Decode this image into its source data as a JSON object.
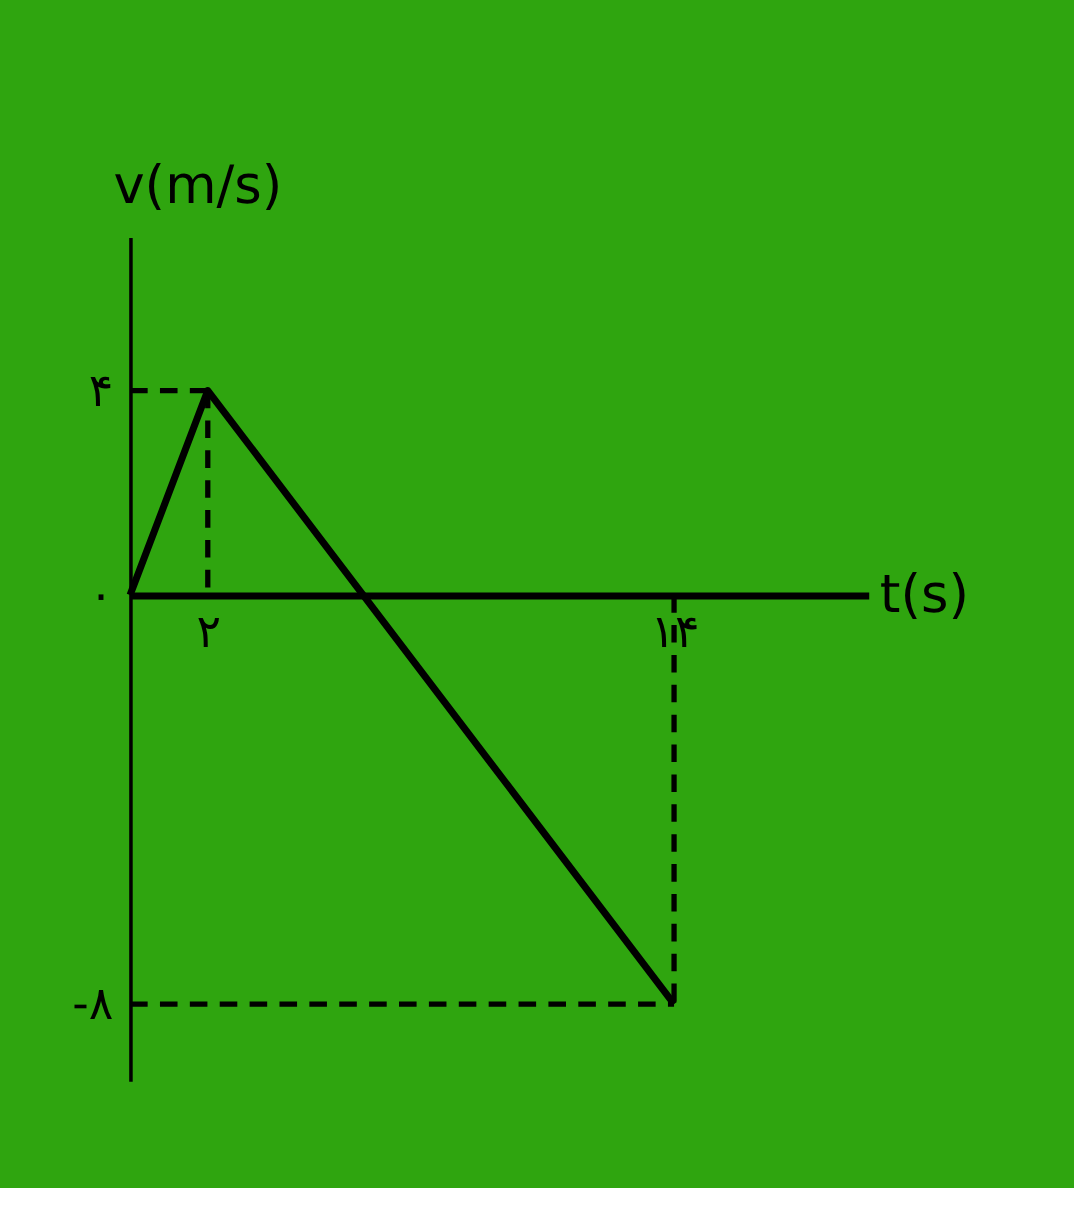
{
  "chart_data": {
    "type": "line",
    "xlabel": "t(s)",
    "ylabel": "v(m/s)",
    "xlim": [
      0,
      19
    ],
    "ylim": [
      -9.5,
      7
    ],
    "xticks": [
      {
        "value": 2,
        "label": "۲"
      },
      {
        "value": 14,
        "label": "۱۴"
      }
    ],
    "yticks": [
      {
        "value": 4,
        "label": "۴"
      },
      {
        "value": 0,
        "label": "۰"
      },
      {
        "value": -8,
        "label": "-۸"
      }
    ],
    "grid": false,
    "marker": "none",
    "series": [
      {
        "color": "#000000",
        "line_style": "solid",
        "x": [
          0,
          2,
          14
        ],
        "values": [
          0,
          4,
          -8
        ]
      },
      {
        "color": "#000000",
        "line_style": "dashed",
        "x": [
          0,
          2
        ],
        "values": [
          4,
          4
        ]
      },
      {
        "color": "#000000",
        "line_style": "dashed",
        "x": [
          2,
          2
        ],
        "values": [
          4,
          0
        ]
      },
      {
        "color": "#000000",
        "line_style": "dashed",
        "x": [
          14,
          14
        ],
        "values": [
          0,
          -8
        ]
      },
      {
        "color": "#000000",
        "line_style": "dashed",
        "x": [
          0,
          14
        ],
        "values": [
          -8,
          -8
        ]
      }
    ]
  }
}
